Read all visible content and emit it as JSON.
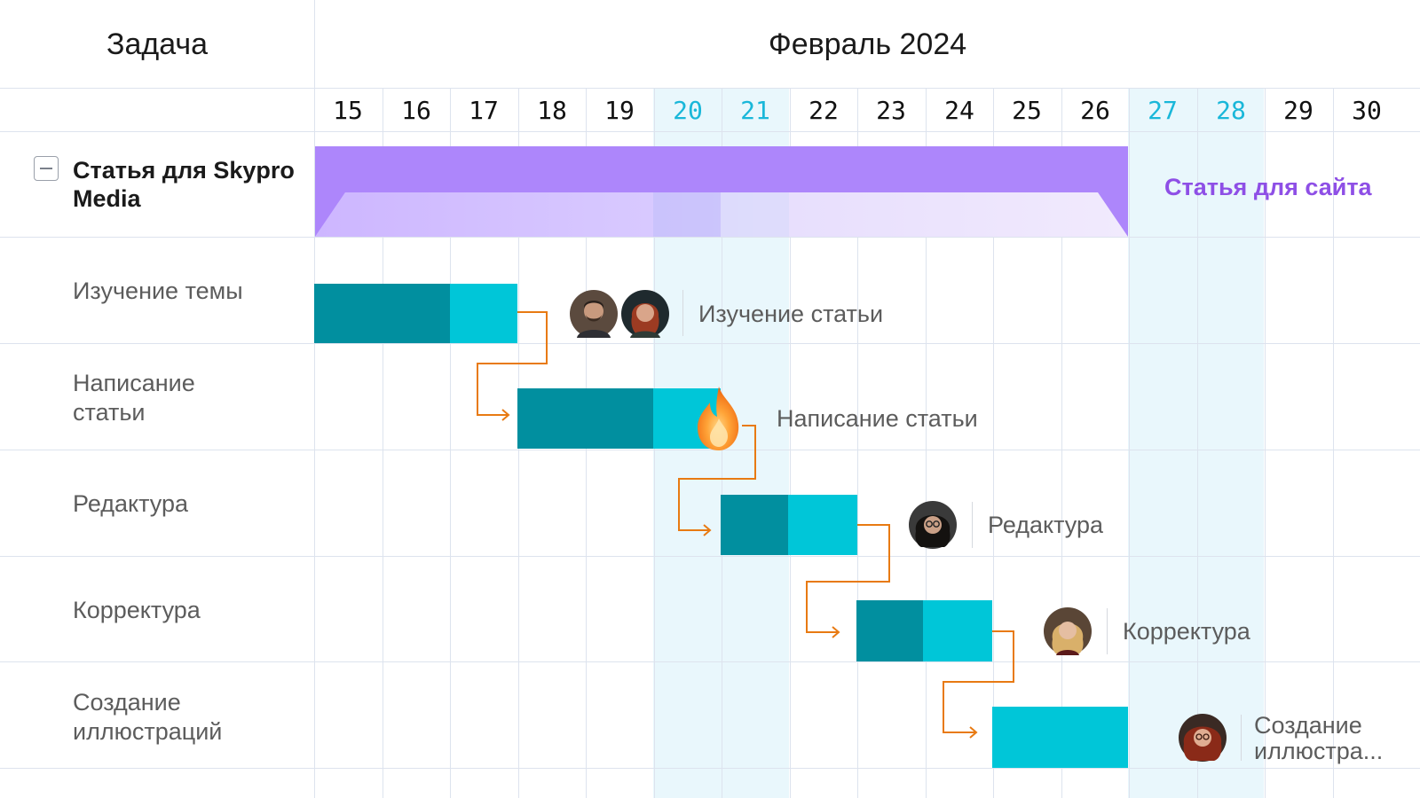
{
  "header": {
    "task_title": "Задача",
    "month_title": "Февраль 2024"
  },
  "days": [
    {
      "label": "15",
      "weekend": false
    },
    {
      "label": "16",
      "weekend": false
    },
    {
      "label": "17",
      "weekend": false
    },
    {
      "label": "18",
      "weekend": false
    },
    {
      "label": "19",
      "weekend": false
    },
    {
      "label": "20",
      "weekend": true
    },
    {
      "label": "21",
      "weekend": true
    },
    {
      "label": "22",
      "weekend": false
    },
    {
      "label": "23",
      "weekend": false
    },
    {
      "label": "24",
      "weekend": false
    },
    {
      "label": "25",
      "weekend": false
    },
    {
      "label": "26",
      "weekend": false
    },
    {
      "label": "27",
      "weekend": true
    },
    {
      "label": "28",
      "weekend": true
    },
    {
      "label": "29",
      "weekend": false
    },
    {
      "label": "30",
      "weekend": false
    }
  ],
  "parent_task": {
    "name": "Статья для Skypro Media",
    "bar_label": "Статья для сайта",
    "color": "#ad86fb"
  },
  "tasks": [
    {
      "name": "Изучение темы",
      "bar_label": "Изучение статьи",
      "assignees": [
        "avatar-man-beard",
        "avatar-woman-red"
      ]
    },
    {
      "name": "Написание статьи",
      "bar_label": "Написание статьи",
      "assignees": []
    },
    {
      "name": "Редактура",
      "bar_label": "Редактура",
      "assignees": [
        "avatar-woman-glasses"
      ]
    },
    {
      "name": "Корректура",
      "bar_label": "Корректура",
      "assignees": [
        "avatar-woman-blonde"
      ]
    },
    {
      "name": "Создание иллюстраций",
      "bar_label": "Создание иллюстра...",
      "assignees": [
        "avatar-woman-curly"
      ]
    }
  ],
  "icons": {
    "collapse": "collapse-minus-icon",
    "overdue": "fire-icon"
  },
  "colors": {
    "bar_dark": "#018f9f",
    "bar_light": "#00c6d8",
    "dependency": "#e87a12",
    "weekend_bg": "#e9f7fc",
    "weekend_text": "#19b7d9"
  }
}
